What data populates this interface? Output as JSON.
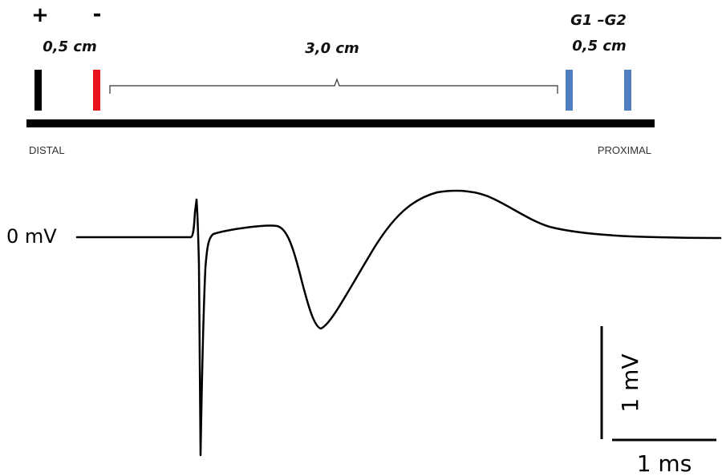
{
  "electrodes": {
    "positive_symbol": "+",
    "negative_symbol": "-",
    "active_spacing": "0,5 cm",
    "inter_distance": "3,0 cm",
    "ground_label": "G1 –G2",
    "ground_spacing": "0,5 cm",
    "colors": {
      "positive": "#000000",
      "negative": "#e8141b",
      "ground": "#4f7fc0",
      "nerve": "#000000",
      "brace": "#333333"
    }
  },
  "nerve": {
    "distal_label": "DISTAL",
    "proximal_label": "PROXIMAL"
  },
  "trace": {
    "baseline_label": "0 mV",
    "stroke_color": "#000000"
  },
  "scale_bar": {
    "voltage_label": "1 mV",
    "time_label": "1 ms"
  }
}
